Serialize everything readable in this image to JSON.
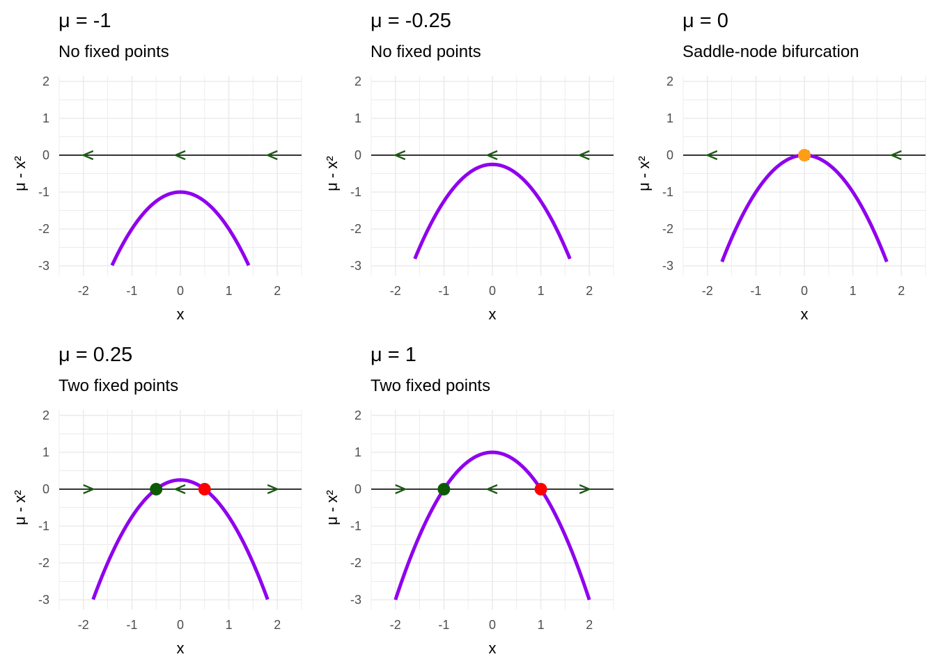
{
  "colors": {
    "curve": "#8F00EE",
    "flow_arrow": "#1A5C12",
    "stable_point": "#0D5A05",
    "unstable_point": "#FF0000",
    "semi_stable_point": "#FF9E14",
    "zero_line": "#333333",
    "grid": "#EBEBEB"
  },
  "chart_data": [
    {
      "type": "line",
      "title": "μ = -1",
      "subtitle": "No fixed points",
      "xlabel": "x",
      "ylabel": "μ - x²",
      "xlim": [
        -2.5,
        2.5
      ],
      "ylim": [
        -3,
        2
      ],
      "xticks": [
        "-2",
        "-1",
        "0",
        "1",
        "2"
      ],
      "yticks": [
        "-3",
        "-2",
        "-1",
        "0",
        "1",
        "2"
      ],
      "grid": true,
      "mu": -1,
      "series": [
        {
          "x_range": [
            -1.41,
            1.41
          ],
          "function": "μ - x²"
        }
      ],
      "flow_arrows": [
        {
          "x": -1.9,
          "direction": "left"
        },
        {
          "x": 0.0,
          "direction": "left"
        },
        {
          "x": 1.9,
          "direction": "left"
        }
      ],
      "fixed_points": []
    },
    {
      "type": "line",
      "title": "μ = -0.25",
      "subtitle": "No fixed points",
      "xlabel": "x",
      "ylabel": "μ - x²",
      "xlim": [
        -2.5,
        2.5
      ],
      "ylim": [
        -3,
        2
      ],
      "xticks": [
        "-2",
        "-1",
        "0",
        "1",
        "2"
      ],
      "yticks": [
        "-3",
        "-2",
        "-1",
        "0",
        "1",
        "2"
      ],
      "grid": true,
      "mu": -0.25,
      "series": [
        {
          "x_range": [
            -1.6,
            1.6
          ],
          "function": "μ - x²"
        }
      ],
      "flow_arrows": [
        {
          "x": -1.9,
          "direction": "left"
        },
        {
          "x": 0.0,
          "direction": "left"
        },
        {
          "x": 1.9,
          "direction": "left"
        }
      ],
      "fixed_points": []
    },
    {
      "type": "line",
      "title": "μ = 0",
      "subtitle": "Saddle-node bifurcation",
      "xlabel": "x",
      "ylabel": "μ - x²",
      "xlim": [
        -2.5,
        2.5
      ],
      "ylim": [
        -3,
        2
      ],
      "xticks": [
        "-2",
        "-1",
        "0",
        "1",
        "2"
      ],
      "yticks": [
        "-3",
        "-2",
        "-1",
        "0",
        "1",
        "2"
      ],
      "grid": true,
      "mu": 0,
      "series": [
        {
          "x_range": [
            -1.7,
            1.7
          ],
          "function": "μ - x²"
        }
      ],
      "flow_arrows": [
        {
          "x": -1.9,
          "direction": "left"
        },
        {
          "x": 0.0,
          "direction": "left"
        },
        {
          "x": 1.9,
          "direction": "left"
        }
      ],
      "fixed_points": [
        {
          "x": 0,
          "stability": "semi-stable"
        }
      ]
    },
    {
      "type": "line",
      "title": "μ = 0.25",
      "subtitle": "Two fixed points",
      "xlabel": "x",
      "ylabel": "μ - x²",
      "xlim": [
        -2.5,
        2.5
      ],
      "ylim": [
        -3,
        2
      ],
      "xticks": [
        "-2",
        "-1",
        "0",
        "1",
        "2"
      ],
      "yticks": [
        "-3",
        "-2",
        "-1",
        "0",
        "1",
        "2"
      ],
      "grid": true,
      "mu": 0.25,
      "series": [
        {
          "x_range": [
            -1.8,
            1.8
          ],
          "function": "μ - x²"
        }
      ],
      "flow_arrows": [
        {
          "x": -1.9,
          "direction": "right"
        },
        {
          "x": 0.0,
          "direction": "left"
        },
        {
          "x": 1.9,
          "direction": "right"
        }
      ],
      "fixed_points": [
        {
          "x": -0.5,
          "stability": "stable"
        },
        {
          "x": 0.5,
          "stability": "unstable"
        }
      ]
    },
    {
      "type": "line",
      "title": "μ = 1",
      "subtitle": "Two fixed points",
      "xlabel": "x",
      "ylabel": "μ - x²",
      "xlim": [
        -2.5,
        2.5
      ],
      "ylim": [
        -3,
        2
      ],
      "xticks": [
        "-2",
        "-1",
        "0",
        "1",
        "2"
      ],
      "yticks": [
        "-3",
        "-2",
        "-1",
        "0",
        "1",
        "2"
      ],
      "grid": true,
      "mu": 1,
      "series": [
        {
          "x_range": [
            -2.0,
            2.0
          ],
          "function": "μ - x²"
        }
      ],
      "flow_arrows": [
        {
          "x": -1.9,
          "direction": "right"
        },
        {
          "x": 0.0,
          "direction": "left"
        },
        {
          "x": 1.9,
          "direction": "right"
        }
      ],
      "fixed_points": [
        {
          "x": -1,
          "stability": "stable"
        },
        {
          "x": 1,
          "stability": "unstable"
        }
      ]
    }
  ]
}
